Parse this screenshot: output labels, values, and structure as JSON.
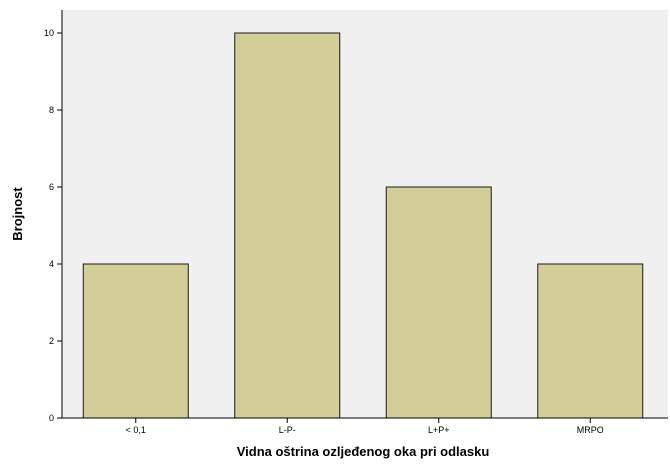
{
  "chart_data": {
    "type": "bar",
    "categories": [
      "< 0,1",
      "L-P-",
      "L+P+",
      "MRPO"
    ],
    "values": [
      4,
      10,
      6,
      4
    ],
    "xlabel": "Vidna oštrina ozljeđenog oka pri odlasku",
    "ylabel": "Brojnost",
    "ylim": [
      0,
      10
    ],
    "yticks": [
      0,
      2,
      4,
      6,
      8,
      10
    ],
    "grid": false,
    "legend": "none",
    "colors": {
      "plot_background": "#f0f0f0",
      "bar_fill": "#d3ce97",
      "bar_stroke": "#1a1a1a",
      "axis": "#000000"
    }
  }
}
